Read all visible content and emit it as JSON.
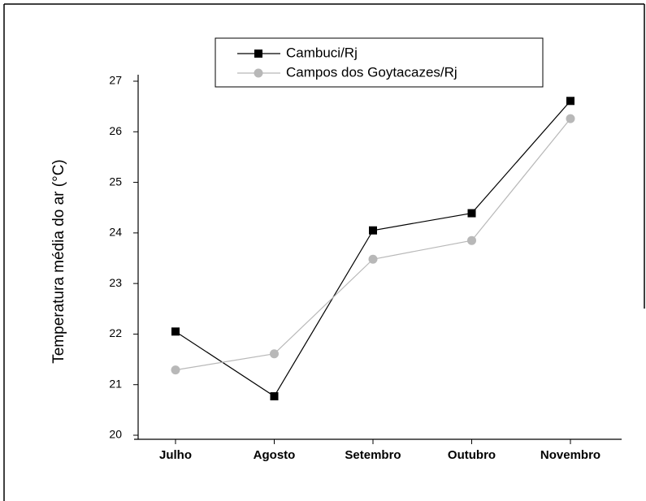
{
  "chart_data": {
    "type": "line",
    "y_label": "Temperatura média do ar (°C)",
    "categories": [
      "Julho",
      "Agosto",
      "Setembro",
      "Outubro",
      "Novembro"
    ],
    "series": [
      {
        "name": "Cambuci/Rj",
        "color": "#000000",
        "marker": "square",
        "values": [
          22.05,
          20.77,
          24.05,
          24.39,
          26.61
        ]
      },
      {
        "name": "Campos dos Goytacazes/Rj",
        "color": "#b8b8b8",
        "marker": "circle",
        "values": [
          21.29,
          21.61,
          23.48,
          23.85,
          26.26
        ]
      }
    ],
    "ylim": [
      20,
      27
    ],
    "yticks": [
      20,
      21,
      22,
      23,
      24,
      25,
      26,
      27
    ]
  }
}
